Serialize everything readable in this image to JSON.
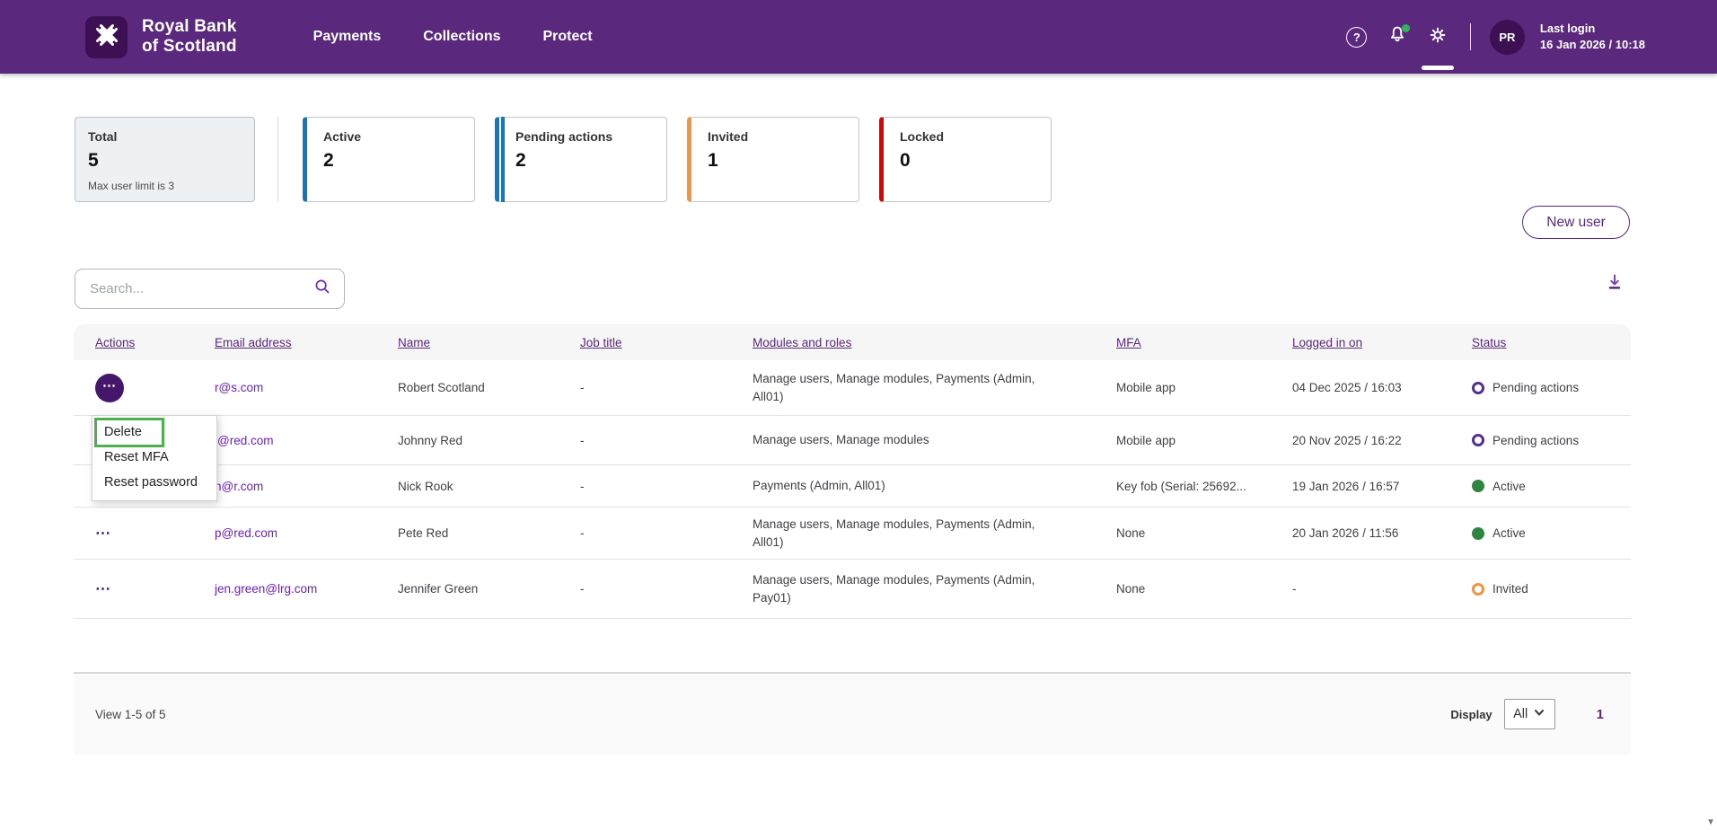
{
  "brand": {
    "line1": "Royal Bank",
    "line2": "of Scotland"
  },
  "nav": {
    "items": [
      "Payments",
      "Collections",
      "Protect"
    ]
  },
  "topbar": {
    "avatar_initials": "PR",
    "last_login_label": "Last login",
    "last_login_value": "16 Jan 2026 / 10:18"
  },
  "icons": {
    "help_glyph": "?",
    "ellipsis_glyph": "⋯",
    "scroll_down_glyph": "▼"
  },
  "summary_cards": [
    {
      "label": "Total",
      "value": "5",
      "note": "Max user limit is 3"
    },
    {
      "label": "Active",
      "value": "2",
      "accent_color": "#1178be",
      "accent_style": "single"
    },
    {
      "label": "Pending actions",
      "value": "2",
      "accent_color": "#1178be",
      "accent_style": "double"
    },
    {
      "label": "Invited",
      "value": "1",
      "accent_color": "#f0943f",
      "accent_style": "single"
    },
    {
      "label": "Locked",
      "value": "0",
      "accent_color": "#e00000",
      "accent_style": "single"
    }
  ],
  "actions": {
    "new_user_label": "New user"
  },
  "search": {
    "placeholder": "Search..."
  },
  "table": {
    "headers": [
      "Actions",
      "Email address",
      "Name",
      "Job title",
      "Modules and roles",
      "MFA",
      "Logged in on",
      "Status"
    ],
    "rows": [
      {
        "email": "r@s.com",
        "name": "Robert Scotland",
        "job": "-",
        "modules": "Manage users, Manage modules, Payments (Admin,\nAll01)",
        "mfa": "Mobile app",
        "logged": "04 Dec 2025 / 16:03",
        "status": "Pending actions",
        "status_type": "pending",
        "menu_open": true
      },
      {
        "email": "j@red.com",
        "name": "Johnny Red",
        "job": "-",
        "modules": "Manage users, Manage modules",
        "mfa": "Mobile app",
        "logged": "20 Nov 2025 / 16:22",
        "status": "Pending actions",
        "status_type": "pending"
      },
      {
        "email": "n@r.com",
        "name": "Nick Rook",
        "job": "-",
        "modules": "Payments (Admin, All01)",
        "mfa": "Key fob (Serial: 25692...",
        "logged": "19 Jan 2026 / 16:57",
        "status": "Active",
        "status_type": "active"
      },
      {
        "email": "p@red.com",
        "name": "Pete Red",
        "job": "-",
        "modules": "Manage users, Manage modules, Payments (Admin,\nAll01)",
        "mfa": "None",
        "logged": "20 Jan 2026 / 11:56",
        "status": "Active",
        "status_type": "active"
      },
      {
        "email": "jen.green@lrg.com",
        "name": "Jennifer Green",
        "job": "-",
        "modules": "Manage users, Manage modules, Payments (Admin,\nPay01)",
        "mfa": "None",
        "logged": "-",
        "status": "Invited",
        "status_type": "invited"
      }
    ]
  },
  "context_menu": {
    "items": [
      "Delete",
      "Reset MFA",
      "Reset password"
    ],
    "highlighted": "Delete"
  },
  "footer": {
    "view_text": "View 1-5 of 5",
    "display_label": "Display",
    "display_value": "All",
    "page": "1"
  },
  "colors": {
    "brand_purple": "#5a287d",
    "brand_dark_purple": "#3c1053",
    "link_purple": "#6d1fc0",
    "status_active": "#2e8540",
    "status_pending": "#542e91",
    "status_invited": "#f0943f",
    "card_blue": "#1178be",
    "card_orange": "#f0943f",
    "card_red": "#e00000",
    "highlight_green": "#4caf50"
  }
}
